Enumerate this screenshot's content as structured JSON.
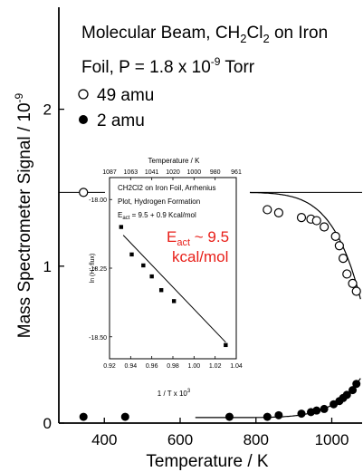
{
  "chart_data": [
    {
      "type": "scatter",
      "title_line1": "Molecular Beam, CH",
      "title_sub": "2",
      "title_mid": "Cl",
      "title_sub2": "2",
      "title_end": " on Iron",
      "subtitle_pre": "Foil,     P = 1.8 x 10",
      "subtitle_exp": "-9",
      "subtitle_post": " Torr",
      "xlabel": "Temperature / K",
      "ylabel_main": "Mass Spectrometer Signal / 10",
      "ylabel_exp": "-9",
      "xlim": [
        280,
        1080
      ],
      "ylim": [
        0,
        2.65
      ],
      "xticks": [
        400,
        600,
        800,
        1000
      ],
      "yticks": [
        0,
        1,
        2
      ],
      "series": [
        {
          "name": "49 amu",
          "marker": "open-circle",
          "points": [
            [
              345,
              1.47
            ],
            [
              455,
              1.47
            ],
            [
              730,
              1.42
            ],
            [
              830,
              1.36
            ],
            [
              860,
              1.34
            ],
            [
              920,
              1.31
            ],
            [
              945,
              1.3
            ],
            [
              960,
              1.29
            ],
            [
              980,
              1.25
            ],
            [
              1010,
              1.19
            ],
            [
              1020,
              1.13
            ],
            [
              1030,
              1.05
            ],
            [
              1040,
              0.95
            ],
            [
              1055,
              0.89
            ],
            [
              1065,
              0.84
            ]
          ]
        },
        {
          "name": "2 amu",
          "marker": "filled-circle",
          "points": [
            [
              345,
              0.04
            ],
            [
              455,
              0.04
            ],
            [
              730,
              0.04
            ],
            [
              830,
              0.04
            ],
            [
              860,
              0.05
            ],
            [
              920,
              0.06
            ],
            [
              945,
              0.07
            ],
            [
              960,
              0.08
            ],
            [
              980,
              0.09
            ],
            [
              1005,
              0.12
            ],
            [
              1020,
              0.14
            ],
            [
              1030,
              0.16
            ],
            [
              1040,
              0.18
            ],
            [
              1055,
              0.21
            ],
            [
              1065,
              0.25
            ]
          ]
        }
      ],
      "reference_level": 1.47,
      "legend": [
        {
          "label": "49 amu",
          "marker": "open-circle"
        },
        {
          "label": "2 amu",
          "marker": "filled-circle"
        }
      ]
    },
    {
      "type": "scatter",
      "title_l1": "CH2Cl2 on Iron Foil,  Arrhenius",
      "title_l2": "Plot,    Hydrogen Formation",
      "eact_text": "E",
      "eact_sub": "act",
      "eact_value": " = 9.5 + 0.9 Kcal/mol",
      "xlabel": "1 / T x 10",
      "xlabel_exp": "3",
      "ylabel": "ln (H",
      "ylabel_sub": "2",
      "ylabel_end": " flux)",
      "top_axis_label": "Temperature / K",
      "xlim": [
        0.92,
        1.04
      ],
      "ylim": [
        -18.58,
        -17.92
      ],
      "xticks": [
        "0.92",
        "0.94",
        "0.96",
        "0.98",
        "1.00",
        "1.02",
        "1.04"
      ],
      "yticks": [
        "-18.00",
        "-18.25",
        "-18.50"
      ],
      "top_ticks": [
        "1087",
        "1063",
        "1041",
        "1020",
        "1000",
        "980",
        "961"
      ],
      "points": [
        [
          0.931,
          -18.1
        ],
        [
          0.941,
          -18.2
        ],
        [
          0.952,
          -18.24
        ],
        [
          0.96,
          -18.28
        ],
        [
          0.969,
          -18.33
        ],
        [
          0.981,
          -18.37
        ],
        [
          1.03,
          -18.53
        ]
      ],
      "fit_line": [
        [
          0.933,
          -18.13
        ],
        [
          1.03,
          -18.52
        ]
      ],
      "annotation_main": "E",
      "annotation_sub": "act",
      "annotation_rest": " ~ 9.5",
      "annotation_line2": "kcal/mol",
      "annotation_color": "#e8201a"
    }
  ]
}
